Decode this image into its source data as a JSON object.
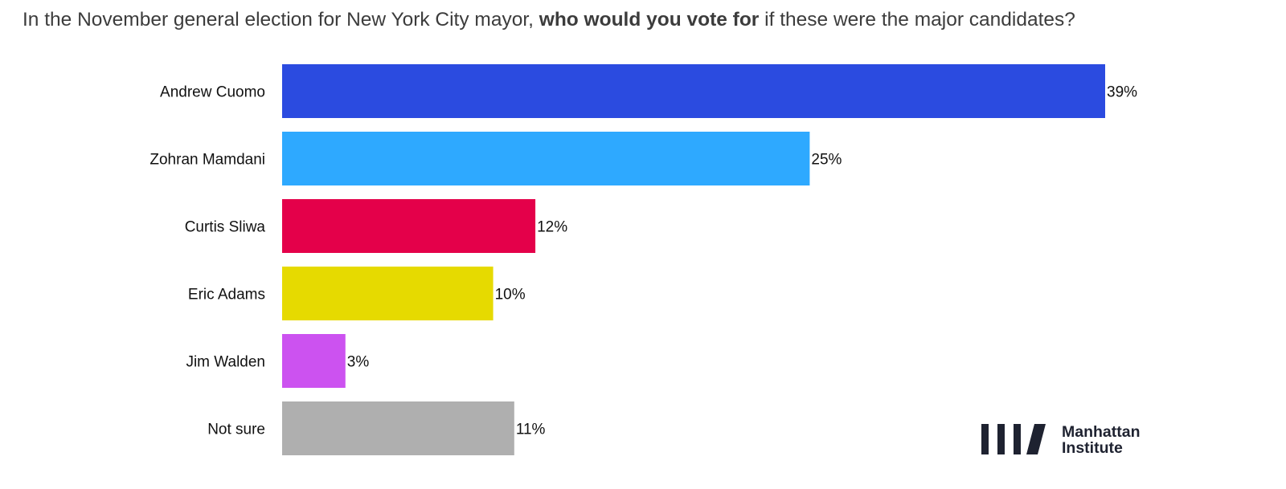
{
  "chart_data": {
    "type": "bar",
    "orientation": "horizontal",
    "title_parts": [
      "In the November general election for New York City mayor, ",
      "who would you vote for",
      " if these were the major candidates?"
    ],
    "categories": [
      "Andrew Cuomo",
      "Zohran Mamdani",
      "Curtis Sliwa",
      "Eric Adams",
      "Jim Walden",
      "Not sure"
    ],
    "values": [
      39,
      25,
      12,
      10,
      3,
      11
    ],
    "value_labels": [
      "39%",
      "25%",
      "12%",
      "10%",
      "3%",
      "11%"
    ],
    "colors": [
      "#2b4be0",
      "#2ea9ff",
      "#e4004a",
      "#e6da00",
      "#cc52f0",
      "#afafaf"
    ],
    "xlim": [
      0,
      39
    ],
    "grid": false,
    "legend": "none"
  },
  "logo": {
    "line1": "Manhattan",
    "line2": "Institute"
  }
}
